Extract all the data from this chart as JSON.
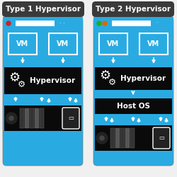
{
  "bg_color": "#f0f0f0",
  "title_bg": "#3a3a3a",
  "panel_bg": "#29abe2",
  "dark_bg": "#0a0a0a",
  "hw_bg": "#0a0a0a",
  "text_white": "#ffffff",
  "red_dot": "#cc2222",
  "green_dot": "#22aa22",
  "orange_dot": "#dd6600",
  "title1": "Type 1 Hypervisor",
  "title2": "Type 2 Hypervisor",
  "label_hypervisor": "Hypervisor",
  "label_hostos": "Host OS",
  "label_vm": "VM",
  "panel_edge": "#777777"
}
